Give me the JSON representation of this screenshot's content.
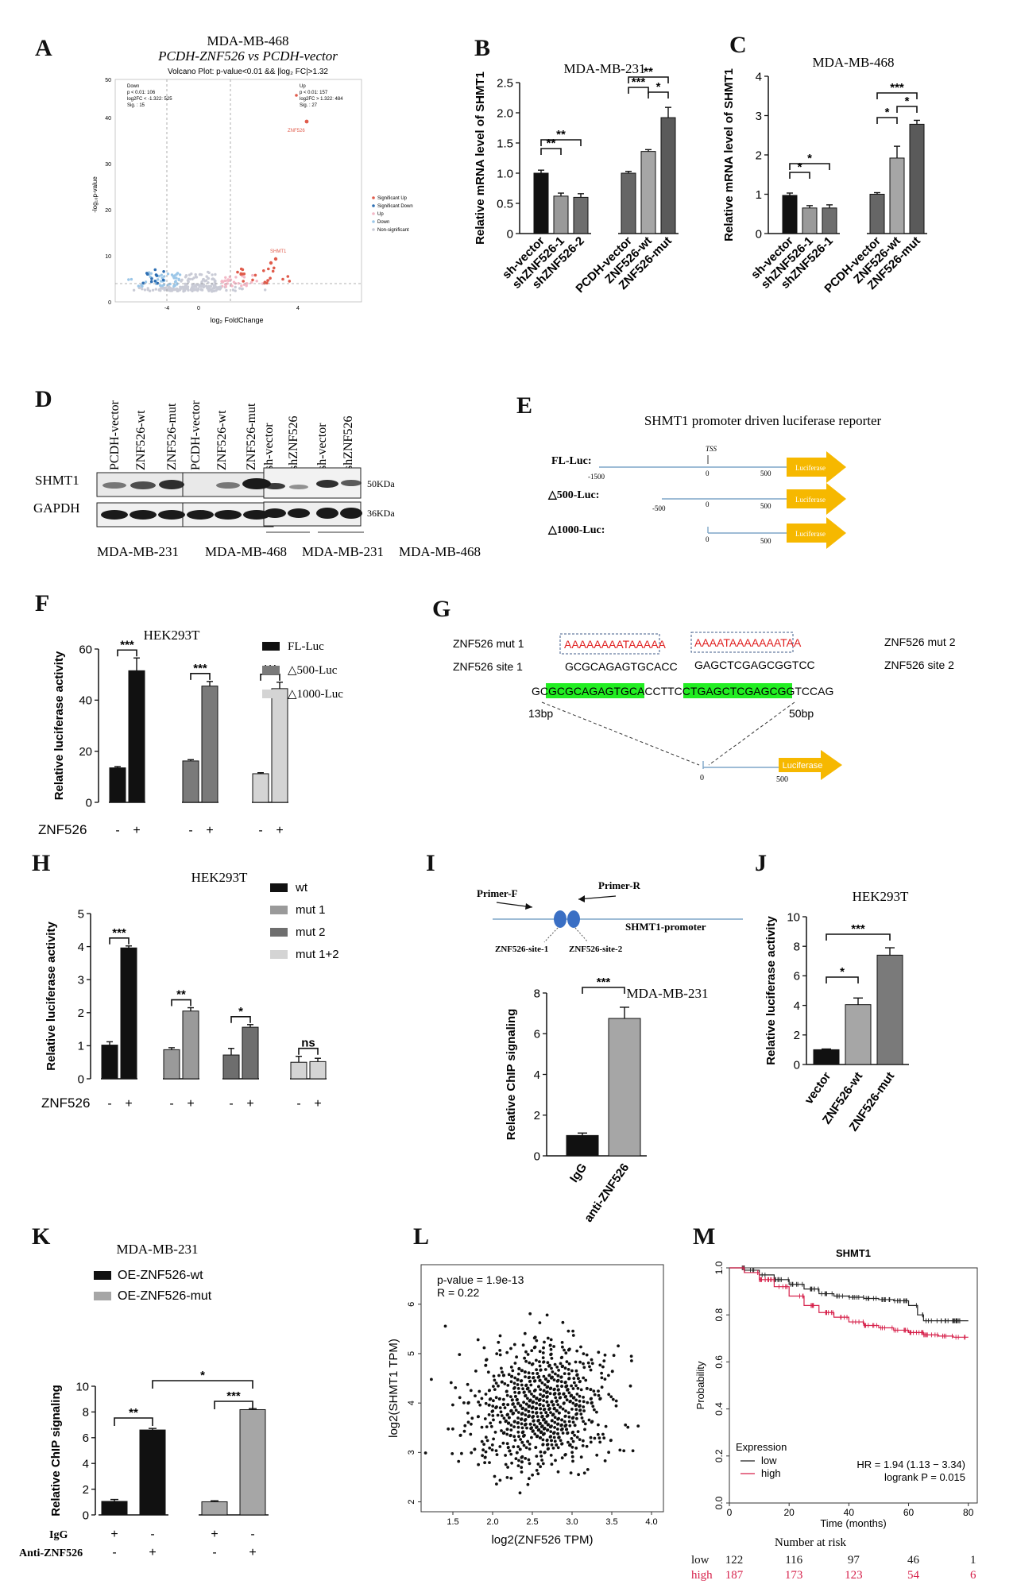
{
  "panel_letters": [
    "A",
    "B",
    "C",
    "D",
    "E",
    "F",
    "G",
    "H",
    "I",
    "J",
    "K",
    "L",
    "M"
  ],
  "panelA": {
    "title1": "MDA-MB-468",
    "title2": "PCDH-ZNF526 vs PCDH-vector",
    "subtitle": "Volcano Plot: p-value<0.01 && |log₂ FC|>1.32",
    "down_box": [
      "Down",
      "p < 0.01: 106",
      "log2FC < -1.322: 525",
      "Sig. : 15"
    ],
    "up_box": [
      "Up",
      "p < 0.01: 157",
      "log2FC > 1.322: 484",
      "Sig. : 27"
    ],
    "legend": [
      "Significant Up",
      "Significant Down",
      "Up",
      "Down",
      "Non-significant"
    ],
    "ylabel": "-log₁₀p-value",
    "xlabel": "log₂ FoldChange",
    "yticks": [
      "0",
      "10",
      "20",
      "30",
      "40",
      "50"
    ],
    "xticks": [
      "-4",
      "0",
      "4"
    ],
    "labels": [
      "ZNF526",
      "SHMT1"
    ],
    "colors": {
      "sig_up": "#e05b4b",
      "sig_down": "#2e6fb3",
      "up": "#f3b8c6",
      "down": "#9cc7e8",
      "ns": "#c9cbd6"
    }
  },
  "panelD": {
    "lanes_left": [
      "PCDH-vector",
      "ZNF526-wt",
      "ZNF526-mut"
    ],
    "lanes_mid": [
      "PCDH-vector",
      "ZNF526-wt",
      "ZNF526-mut"
    ],
    "lanes_right": [
      "sh-vector",
      "shZNF526",
      "sh-vector",
      "shZNF526"
    ],
    "rows": [
      "SHMT1",
      "GAPDH"
    ],
    "kda": [
      "50KDa",
      "36KDa"
    ],
    "cells": [
      "MDA-MB-231",
      "MDA-MB-468",
      "MDA-MB-231",
      "MDA-MB-468"
    ]
  },
  "panelE": {
    "title": "SHMT1 promoter driven luciferase reporter",
    "constructs": [
      "FL-Luc:",
      "△500-Luc:",
      "△1000-Luc:"
    ],
    "positions": [
      "-1500",
      "-500",
      "0",
      "500",
      "TSS"
    ],
    "box": "Luciferase"
  },
  "panelG": {
    "mut1_label": "ZNF526 mut 1",
    "site1_label": "ZNF526 site 1",
    "mut2_label": "ZNF526 mut 2",
    "site2_label": "ZNF526 site 2",
    "mut1_seq": "AAAAAAAATAAAAA",
    "mut2_seq": "AAAATAAAAAAATAA",
    "site1_seq": "GCGCAGAGTGCACC",
    "site2_seq": "GAGCTCGAGCGGTCC",
    "full_pre": "GC",
    "full_site1": "GCGCAGAGTGCACC",
    "full_mid": "TTCCT",
    "full_site2": "GAGCTCGAGCGGTCC",
    "full_post": "AG",
    "bp_left": "13bp",
    "bp_right": "50bp",
    "pos0": "0",
    "pos500": "500",
    "box": "Luciferase"
  },
  "panelI": {
    "primer_f": "Primer-F",
    "primer_r": "Primer-R",
    "promoter": "SHMT1-promoter",
    "site1": "ZNF526-site-1",
    "site2": "ZNF526-site-2"
  },
  "panelL": {
    "pvalue": "p-value = 1.9e-13",
    "r": "R = 0.22",
    "xlabel": "log2(ZNF526 TPM)",
    "ylabel": "log2(SHMT1 TPM)"
  },
  "panelM": {
    "title": "SHMT1",
    "ylabel": "Probability",
    "xlabel": "Time (months)",
    "legend_title": "Expression",
    "legend": [
      "low",
      "high"
    ],
    "hr": "HR = 1.94 (1.13 − 3.34)",
    "logrank": "logrank P = 0.015",
    "risk_title": "Number at risk",
    "risk_rows": [
      {
        "label": "low",
        "values": [
          "122",
          "116",
          "97",
          "46",
          "1"
        ],
        "color": "#111111"
      },
      {
        "label": "high",
        "values": [
          "187",
          "173",
          "123",
          "54",
          "6"
        ],
        "color": "#d6204a"
      }
    ]
  },
  "chart_data": [
    {
      "id": "B",
      "type": "bar",
      "title": "MDA-MB-231",
      "ylabel": "Relative mRNA level of SHMT1",
      "ylim": [
        0,
        2.5
      ],
      "yticks": [
        "0",
        "0.5",
        "1.0",
        "1.5",
        "2.0",
        "2.5"
      ],
      "categories": [
        "sh-vector",
        "shZNF526-1",
        "shZNF526-2",
        "PCDH-vector",
        "ZNF526-wt",
        "ZNF526-mut"
      ],
      "values": [
        1.0,
        0.62,
        0.6,
        1.0,
        1.36,
        1.92
      ],
      "errors": [
        0.05,
        0.05,
        0.06,
        0.03,
        0.03,
        0.17
      ],
      "colors": [
        "#111111",
        "#9a9a9a",
        "#6e6e6e",
        "#666666",
        "#a6a6a6",
        "#5a5a5a"
      ],
      "significance": [
        {
          "from": 0,
          "to": 1,
          "label": "**"
        },
        {
          "from": 0,
          "to": 2,
          "label": "**"
        },
        {
          "from": 3,
          "to": 4,
          "label": "***"
        },
        {
          "from": 4,
          "to": 5,
          "label": "*"
        },
        {
          "from": 3,
          "to": 5,
          "label": "**"
        }
      ]
    },
    {
      "id": "C",
      "type": "bar",
      "title": "MDA-MB-468",
      "ylabel": "Relative mRNA level of SHMT1",
      "ylim": [
        0,
        4
      ],
      "yticks": [
        "0",
        "1",
        "2",
        "3",
        "4"
      ],
      "categories": [
        "sh-vector",
        "shZNF526-1",
        "shZNF526-1",
        "PCDH-vector",
        "ZNF526-wt",
        "ZNF526-mut"
      ],
      "values": [
        0.97,
        0.65,
        0.65,
        1.0,
        1.92,
        2.78
      ],
      "errors": [
        0.06,
        0.06,
        0.08,
        0.04,
        0.3,
        0.1
      ],
      "colors": [
        "#111111",
        "#9a9a9a",
        "#6e6e6e",
        "#666666",
        "#a6a6a6",
        "#5a5a5a"
      ],
      "significance": [
        {
          "from": 0,
          "to": 1,
          "label": "*"
        },
        {
          "from": 0,
          "to": 2,
          "label": "*"
        },
        {
          "from": 3,
          "to": 4,
          "label": "*"
        },
        {
          "from": 4,
          "to": 5,
          "label": "*"
        },
        {
          "from": 3,
          "to": 5,
          "label": "***"
        }
      ]
    },
    {
      "id": "F",
      "type": "bar",
      "title": "HEK293T",
      "ylabel": "Relative luciferase activity",
      "ylim": [
        0,
        60
      ],
      "yticks": [
        "0",
        "20",
        "40",
        "60"
      ],
      "condition_label": "ZNF526",
      "series": [
        {
          "name": "FL-Luc",
          "color": "#111111",
          "values": [
            13.5,
            51.5
          ]
        },
        {
          "name": "△500-Luc",
          "color": "#7a7a7a",
          "values": [
            16.2,
            45.5
          ]
        },
        {
          "name": "△1000-Luc",
          "color": "#d4d4d4",
          "values": [
            11.2,
            44.5
          ]
        }
      ],
      "errors": [
        [
          0.5,
          5
        ],
        [
          0.5,
          1.8
        ],
        [
          0.4,
          2.5
        ]
      ],
      "signs": [
        "-",
        "+"
      ],
      "significance": [
        "***",
        "***",
        "***"
      ]
    },
    {
      "id": "H",
      "type": "bar",
      "title": "HEK293T",
      "ylabel": "Relative luciferase activity",
      "ylim": [
        0,
        5
      ],
      "yticks": [
        "0",
        "1",
        "2",
        "3",
        "4",
        "5"
      ],
      "condition_label": "ZNF526",
      "series": [
        {
          "name": "wt",
          "color": "#111111",
          "values": [
            1.02,
            3.96
          ]
        },
        {
          "name": "mut 1",
          "color": "#9a9a9a",
          "values": [
            0.88,
            2.05
          ]
        },
        {
          "name": "mut 2",
          "color": "#6e6e6e",
          "values": [
            0.72,
            1.56
          ]
        },
        {
          "name": "mut 1+2",
          "color": "#d4d4d4",
          "values": [
            0.5,
            0.52
          ]
        }
      ],
      "errors": [
        [
          0.1,
          0.06
        ],
        [
          0.06,
          0.1
        ],
        [
          0.2,
          0.08
        ],
        [
          0.18,
          0.1
        ]
      ],
      "signs": [
        "-",
        "+"
      ],
      "significance": [
        "***",
        "**",
        "*",
        "ns"
      ]
    },
    {
      "id": "I",
      "type": "bar",
      "title": "MDA-MB-231",
      "ylabel": "Relative ChIP signaling",
      "ylim": [
        0,
        8
      ],
      "yticks": [
        "0",
        "2",
        "4",
        "6",
        "8"
      ],
      "categories": [
        "IgG",
        "anti-ZNF526"
      ],
      "values": [
        1.0,
        6.75
      ],
      "errors": [
        0.12,
        0.55
      ],
      "colors": [
        "#111111",
        "#a6a6a6"
      ],
      "significance": [
        {
          "from": 0,
          "to": 1,
          "label": "***"
        }
      ]
    },
    {
      "id": "J",
      "type": "bar",
      "title": "HEK293T",
      "ylabel": "Relative luciferase activity",
      "ylim": [
        0,
        10
      ],
      "yticks": [
        "0",
        "2",
        "4",
        "6",
        "8",
        "10"
      ],
      "categories": [
        "vector",
        "ZNF526-wt",
        "ZNF526-mut"
      ],
      "values": [
        1.0,
        4.05,
        7.4
      ],
      "errors": [
        0.05,
        0.45,
        0.5
      ],
      "colors": [
        "#111111",
        "#a6a6a6",
        "#7a7a7a"
      ],
      "significance": [
        {
          "from": 0,
          "to": 1,
          "label": "*"
        },
        {
          "from": 0,
          "to": 2,
          "label": "***"
        }
      ]
    },
    {
      "id": "K",
      "type": "bar",
      "title": "MDA-MB-231",
      "ylabel": "Relative ChIP signaling",
      "ylim": [
        0,
        10
      ],
      "yticks": [
        "0",
        "2",
        "4",
        "6",
        "8",
        "10"
      ],
      "series": [
        {
          "name": "OE-ZNF526-wt",
          "color": "#111111",
          "values": [
            1.05,
            6.6
          ]
        },
        {
          "name": "OE-ZNF526-mut",
          "color": "#a6a6a6",
          "values": [
            1.02,
            8.18
          ]
        }
      ],
      "errors": [
        [
          0.15,
          0.12
        ],
        [
          0.08,
          0.08
        ]
      ],
      "row_labels": [
        "IgG",
        "Anti-ZNF526"
      ],
      "igg_signs": [
        "+",
        "-",
        "+",
        "-"
      ],
      "anti_signs": [
        "-",
        "+",
        "-",
        "+"
      ],
      "significance": [
        "**",
        "***",
        "*"
      ]
    },
    {
      "id": "L",
      "type": "scatter",
      "xlabel": "log2(ZNF526 TPM)",
      "ylabel": "log2(SHMT1 TPM)",
      "xlim": [
        1.1,
        4.15
      ],
      "ylim": [
        1.8,
        6.8
      ],
      "xticks": [
        "1.5",
        "2.0",
        "2.5",
        "3.0",
        "3.5",
        "4.0"
      ],
      "yticks": [
        "2",
        "3",
        "4",
        "5",
        "6"
      ],
      "n_points": 900,
      "x_center": 2.62,
      "y_center": 3.95
    },
    {
      "id": "M",
      "type": "line",
      "title": "SHMT1",
      "xlabel": "Time (months)",
      "ylabel": "Probability",
      "xlim": [
        0,
        83
      ],
      "ylim": [
        0,
        1.0
      ],
      "xticks": [
        "0",
        "20",
        "40",
        "60",
        "80"
      ],
      "yticks": [
        "0.0",
        "0.2",
        "0.4",
        "0.6",
        "0.8",
        "1.0"
      ],
      "series": [
        {
          "name": "low",
          "color": "#222222",
          "x": [
            0,
            5,
            10,
            15,
            20,
            25,
            30,
            35,
            40,
            45,
            50,
            55,
            60,
            63,
            65,
            70,
            75,
            80
          ],
          "y": [
            1.0,
            0.99,
            0.97,
            0.95,
            0.93,
            0.91,
            0.89,
            0.88,
            0.875,
            0.87,
            0.865,
            0.86,
            0.84,
            0.8,
            0.775,
            0.775,
            0.775,
            0.775
          ]
        },
        {
          "name": "high",
          "color": "#d6204a",
          "x": [
            0,
            5,
            10,
            15,
            20,
            25,
            30,
            35,
            40,
            45,
            50,
            55,
            60,
            65,
            70,
            75,
            80
          ],
          "y": [
            1.0,
            0.98,
            0.95,
            0.92,
            0.88,
            0.84,
            0.81,
            0.79,
            0.77,
            0.755,
            0.745,
            0.735,
            0.725,
            0.715,
            0.71,
            0.705,
            0.705
          ]
        }
      ]
    }
  ]
}
